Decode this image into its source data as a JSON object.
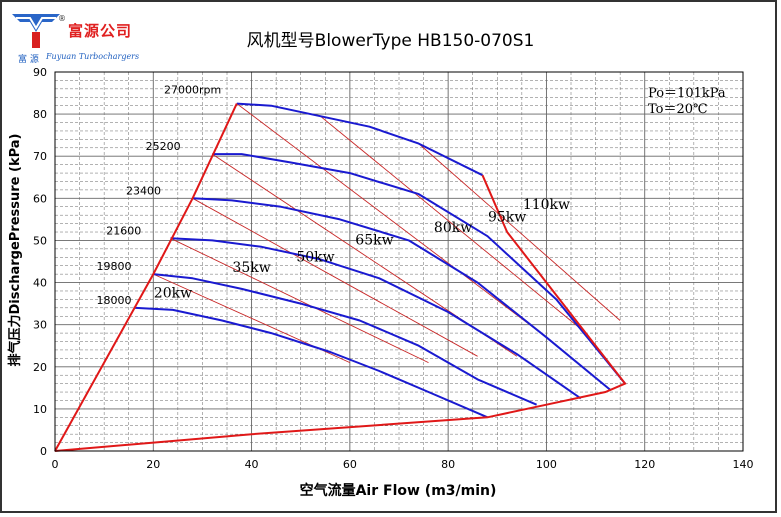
{
  "logo": {
    "company_cn": "富源公司",
    "company_cn_small": "富 源",
    "company_en": "Fuyuan Turbochargers",
    "registered_mark": "®"
  },
  "chart_data": {
    "type": "line",
    "title": "风机型号BlowerType HB150-070S1",
    "xlabel": "空气流量Air Flow (m3/min)",
    "ylabel": "排气压力DischargePressure (kPa)",
    "xlim": [
      0,
      140
    ],
    "ylim": [
      0,
      90
    ],
    "x_ticks": [
      0,
      20,
      40,
      60,
      80,
      100,
      120,
      140
    ],
    "y_ticks": [
      0,
      10,
      20,
      30,
      40,
      50,
      60,
      70,
      80,
      90
    ],
    "grid": true,
    "conditions": [
      "Po＝101kPa",
      "To＝20℃"
    ],
    "colors": {
      "speed_lines": "#1a1ad0",
      "envelope": "#e01818",
      "power_lines": "#c82828",
      "grid": "#666666"
    },
    "speed_curves": [
      {
        "label": "18000",
        "points": [
          [
            16,
            34
          ],
          [
            24,
            33.5
          ],
          [
            34,
            31
          ],
          [
            44,
            28
          ],
          [
            56,
            23.5
          ],
          [
            66,
            19
          ],
          [
            76,
            14
          ],
          [
            88,
            8
          ]
        ]
      },
      {
        "label": "19800",
        "points": [
          [
            20,
            42
          ],
          [
            28,
            41
          ],
          [
            38,
            38.5
          ],
          [
            50,
            35
          ],
          [
            62,
            31
          ],
          [
            74,
            25
          ],
          [
            86,
            17
          ],
          [
            98,
            11
          ]
        ]
      },
      {
        "label": "21600",
        "points": [
          [
            23.5,
            50.5
          ],
          [
            32,
            50
          ],
          [
            42,
            48.5
          ],
          [
            54,
            45.5
          ],
          [
            66,
            41
          ],
          [
            80,
            33
          ],
          [
            94,
            23
          ],
          [
            107,
            12.5
          ]
        ]
      },
      {
        "label": "23400",
        "points": [
          [
            28,
            60
          ],
          [
            36,
            59.5
          ],
          [
            46,
            58
          ],
          [
            58,
            55
          ],
          [
            72,
            50
          ],
          [
            86,
            40
          ],
          [
            100,
            27
          ],
          [
            113,
            14.5
          ]
        ]
      },
      {
        "label": "25200",
        "points": [
          [
            32,
            70.5
          ],
          [
            38,
            70.5
          ],
          [
            48,
            68.5
          ],
          [
            60,
            66
          ],
          [
            74,
            61
          ],
          [
            88,
            51
          ],
          [
            102,
            36
          ],
          [
            116,
            16
          ]
        ]
      },
      {
        "label": "27000rpm",
        "points": [
          [
            37,
            82.5
          ],
          [
            44,
            82
          ],
          [
            54,
            79.5
          ],
          [
            64,
            77
          ],
          [
            74,
            73
          ],
          [
            87,
            65.5
          ]
        ]
      }
    ],
    "surge_line": [
      [
        0,
        0
      ],
      [
        20,
        42
      ],
      [
        28,
        60
      ],
      [
        37,
        82.5
      ]
    ],
    "max_flow_line": [
      [
        0,
        0
      ],
      [
        40,
        4
      ],
      [
        88,
        8
      ],
      [
        100,
        11
      ],
      [
        112,
        14
      ],
      [
        116,
        16
      ],
      [
        92,
        52
      ],
      [
        87,
        65.5
      ]
    ],
    "power_lines": [
      {
        "label": "20kw",
        "points": [
          [
            20,
            42
          ],
          [
            60,
            21
          ]
        ]
      },
      {
        "label": "35kw",
        "points": [
          [
            23.5,
            50.5
          ],
          [
            76,
            21
          ]
        ]
      },
      {
        "label": "50kw",
        "points": [
          [
            28,
            60
          ],
          [
            86,
            22.5
          ]
        ]
      },
      {
        "label": "65kw",
        "points": [
          [
            32,
            70.5
          ],
          [
            94,
            22.5
          ]
        ]
      },
      {
        "label": "80kw",
        "points": [
          [
            37,
            82.5
          ],
          [
            100,
            27
          ]
        ]
      },
      {
        "label": "95kw",
        "points": [
          [
            54,
            79.5
          ],
          [
            107,
            29
          ]
        ]
      },
      {
        "label": "110kw",
        "points": [
          [
            74,
            73
          ],
          [
            115,
            31
          ]
        ]
      }
    ],
    "speed_label_positions": [
      [
        12,
        34
      ],
      [
        12,
        42
      ],
      [
        14,
        50.5
      ],
      [
        18,
        60
      ],
      [
        22,
        70.5
      ],
      [
        28,
        84
      ]
    ],
    "power_label_positions": [
      [
        24,
        36.5
      ],
      [
        40,
        42.5
      ],
      [
        53,
        45
      ],
      [
        65,
        49
      ],
      [
        81,
        52
      ],
      [
        92,
        54.5
      ],
      [
        100,
        57.5
      ]
    ]
  }
}
